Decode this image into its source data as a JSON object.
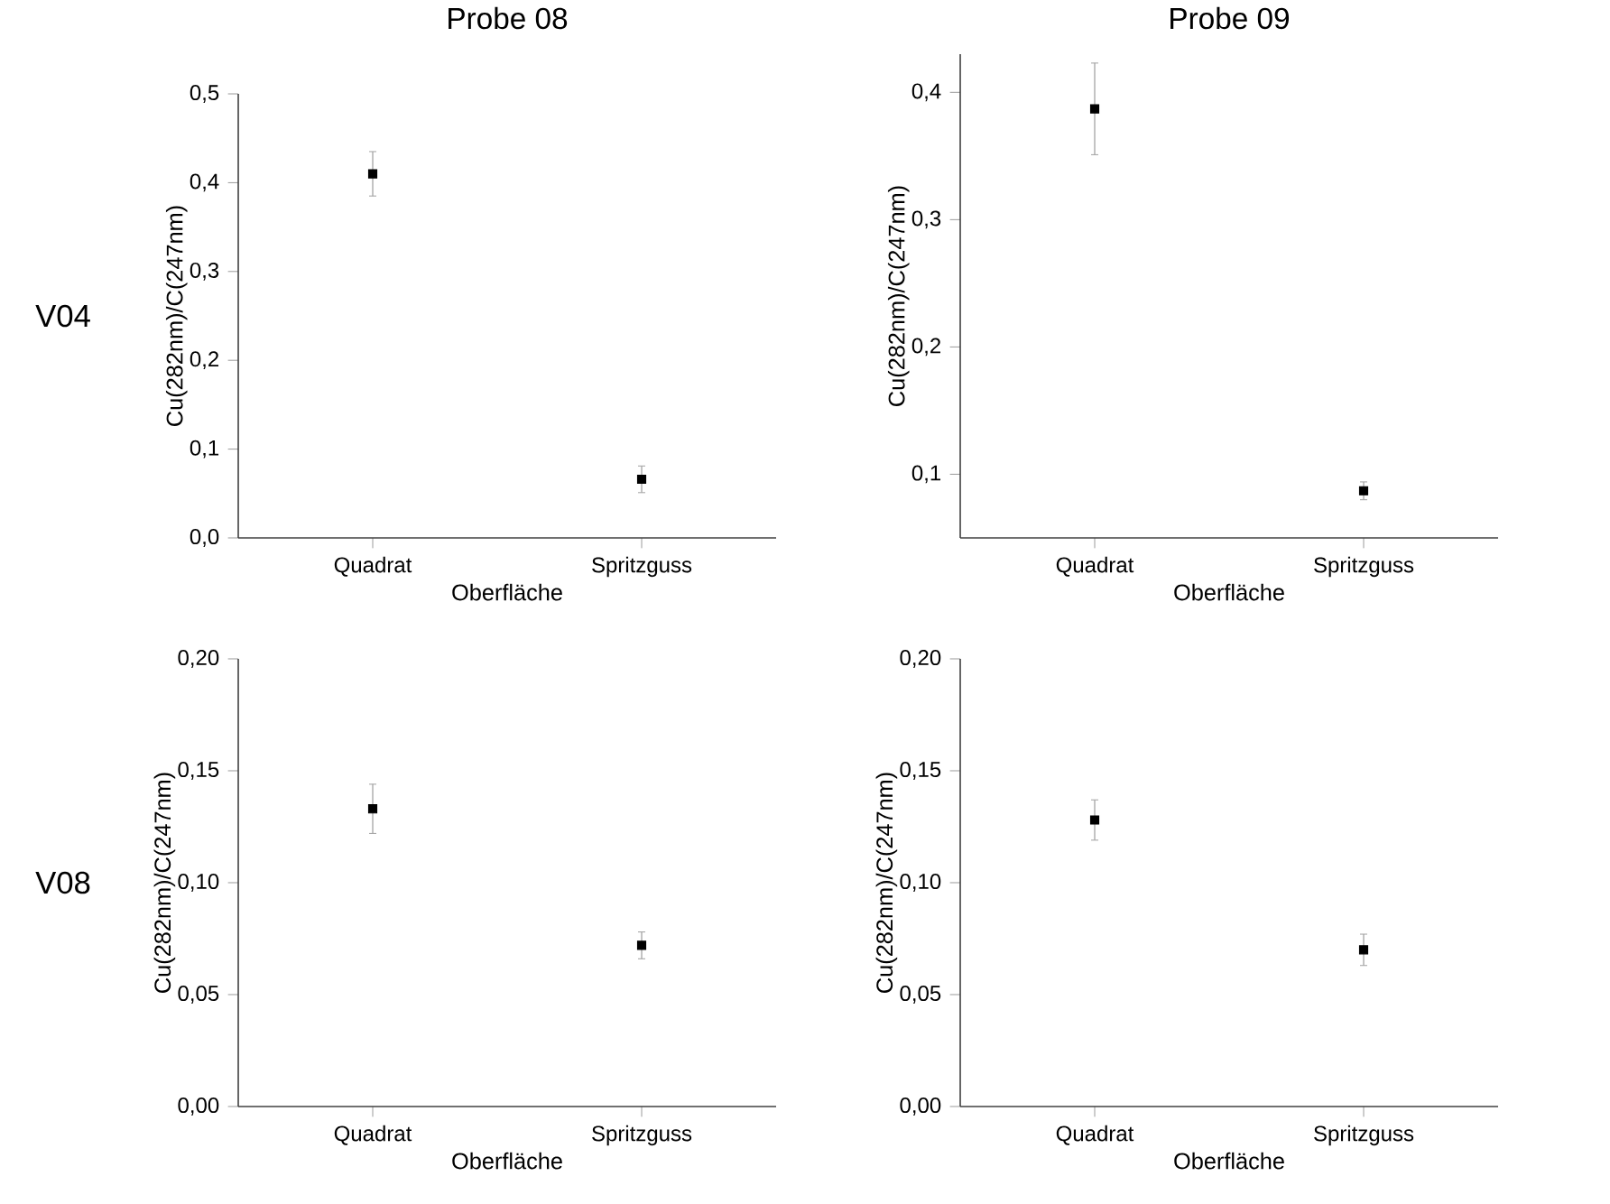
{
  "chart_data": [
    {
      "type": "scatter",
      "title": "Probe 08",
      "annotations": [
        "V04"
      ],
      "xlabel": "Oberfläche",
      "ylabel": "Cu(282nm)/C(247nm)",
      "categories": [
        "Quadrat",
        "Spritzguss"
      ],
      "values": [
        0.41,
        0.066
      ],
      "errors": [
        0.025,
        0.015
      ],
      "color": "#000000",
      "marker": "square",
      "ylim": [
        0,
        0.5
      ],
      "yticks": [
        {
          "value": 0,
          "label": "0,0"
        },
        {
          "value": 0.1,
          "label": "0,1"
        },
        {
          "value": 0.2,
          "label": "0,2"
        },
        {
          "value": 0.3,
          "label": "0,3"
        },
        {
          "value": 0.4,
          "label": "0,4"
        },
        {
          "value": 0.5,
          "label": "0,5"
        }
      ]
    },
    {
      "type": "scatter",
      "title": "Probe 09",
      "xlabel": "Oberfläche",
      "ylabel": "Cu(282nm)/C(247nm)",
      "categories": [
        "Quadrat",
        "Spritzguss"
      ],
      "values": [
        0.387,
        0.087
      ],
      "errors": [
        0.036,
        0.007
      ],
      "color": "#000000",
      "marker": "square",
      "ylim": [
        0.05,
        0.43
      ],
      "yticks": [
        {
          "value": 0.1,
          "label": "0,1"
        },
        {
          "value": 0.2,
          "label": "0,2"
        },
        {
          "value": 0.3,
          "label": "0,3"
        },
        {
          "value": 0.4,
          "label": "0,4"
        }
      ]
    },
    {
      "type": "scatter",
      "annotations": [
        "V08"
      ],
      "xlabel": "Oberfläche",
      "ylabel": "Cu(282nm)/C(247nm)",
      "categories": [
        "Quadrat",
        "Spritzguss"
      ],
      "values": [
        0.133,
        0.072
      ],
      "errors": [
        0.011,
        0.006
      ],
      "color": "#000000",
      "marker": "square",
      "ylim": [
        0,
        0.2
      ],
      "yticks": [
        {
          "value": 0,
          "label": "0,00"
        },
        {
          "value": 0.05,
          "label": "0,05"
        },
        {
          "value": 0.1,
          "label": "0,10"
        },
        {
          "value": 0.15,
          "label": "0,15"
        },
        {
          "value": 0.2,
          "label": "0,20"
        }
      ]
    },
    {
      "type": "scatter",
      "xlabel": "Oberfläche",
      "ylabel": "Cu(282nm)/C(247nm)",
      "categories": [
        "Quadrat",
        "Spritzguss"
      ],
      "values": [
        0.128,
        0.07
      ],
      "errors": [
        0.009,
        0.007
      ],
      "color": "#000000",
      "marker": "square",
      "ylim": [
        0,
        0.2
      ],
      "yticks": [
        {
          "value": 0,
          "label": "0,00"
        },
        {
          "value": 0.05,
          "label": "0,05"
        },
        {
          "value": 0.1,
          "label": "0,10"
        },
        {
          "value": 0.15,
          "label": "0,15"
        },
        {
          "value": 0.2,
          "label": "0,20"
        }
      ]
    }
  ]
}
